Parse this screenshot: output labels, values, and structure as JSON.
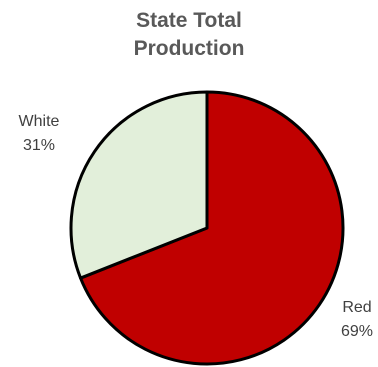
{
  "chart_data": {
    "type": "pie",
    "title": "State Total Production",
    "title_lines": [
      "State Total",
      "Production"
    ],
    "slices": [
      {
        "name": "Red",
        "value": 69,
        "value_label": "69%",
        "color": "#c00000"
      },
      {
        "name": "White",
        "value": 31,
        "value_label": "31%",
        "color": "#e2efda"
      }
    ],
    "start": "12 o'clock",
    "direction": "clockwise"
  }
}
